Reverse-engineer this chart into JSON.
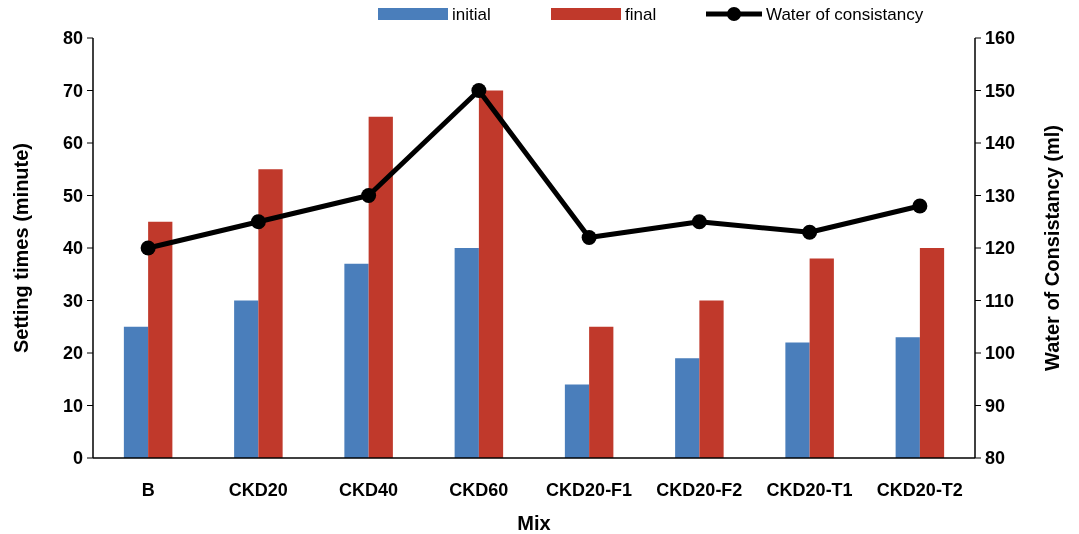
{
  "chart_data": {
    "type": "bar",
    "xlabel": "Mix",
    "ylabel": "Setting times (minute)",
    "y2label": "Water of Consistancy (ml)",
    "categories": [
      "B",
      "CKD20",
      "CKD40",
      "CKD60",
      "CKD20-F1",
      "CKD20-F2",
      "CKD20-T1",
      "CKD20-T2"
    ],
    "series": [
      {
        "name": "initial",
        "color": "#4a7ebb",
        "values": [
          25,
          30,
          37,
          40,
          14,
          19,
          22,
          23
        ]
      },
      {
        "name": "final",
        "color": "#c0392b",
        "values": [
          45,
          55,
          65,
          70,
          25,
          30,
          38,
          40
        ]
      },
      {
        "name": "Water of consistancy",
        "type": "line",
        "axis": "y2",
        "color": "#000000",
        "marker": "circle",
        "values": [
          120,
          125,
          130,
          150,
          122,
          125,
          123,
          128
        ]
      }
    ],
    "ylim": [
      0,
      80
    ],
    "yticks": [
      0,
      10,
      20,
      30,
      40,
      50,
      60,
      70,
      80
    ],
    "y2lim": [
      80,
      160
    ],
    "y2ticks": [
      80,
      90,
      100,
      110,
      120,
      130,
      140,
      150,
      160
    ],
    "legend": "top",
    "grid": false
  }
}
